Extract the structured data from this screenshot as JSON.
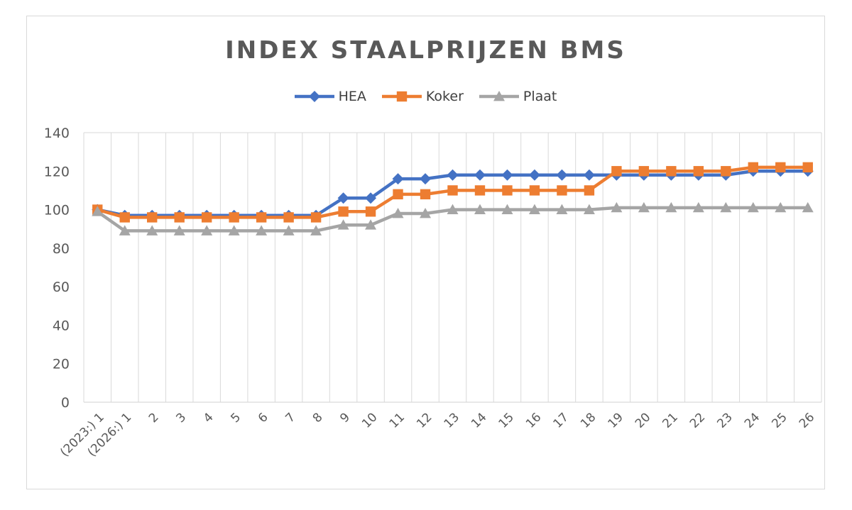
{
  "chart_data": {
    "type": "line",
    "title": "INDEX STAALPRIJZEN BMS",
    "xlabel": "",
    "ylabel": "",
    "ylim": [
      0,
      140
    ],
    "yticks": [
      0,
      20,
      40,
      60,
      80,
      100,
      120,
      140
    ],
    "grid": "vertical",
    "legend_position": "top",
    "categories": [
      "(2023:) 1",
      "(2026:) 1",
      "2",
      "3",
      "4",
      "5",
      "6",
      "7",
      "8",
      "9",
      "10",
      "11",
      "12",
      "13",
      "14",
      "15",
      "16",
      "17",
      "18",
      "19",
      "20",
      "21",
      "22",
      "23",
      "24",
      "25",
      "26"
    ],
    "series": [
      {
        "name": "HEA",
        "color": "#4472c4",
        "marker": "diamond",
        "values": [
          100,
          97,
          97,
          97,
          97,
          97,
          97,
          97,
          97,
          106,
          106,
          116,
          116,
          118,
          118,
          118,
          118,
          118,
          118,
          118,
          118,
          118,
          118,
          118,
          120,
          120,
          120
        ]
      },
      {
        "name": "Koker",
        "color": "#ed7d31",
        "marker": "square",
        "values": [
          100,
          96,
          96,
          96,
          96,
          96,
          96,
          96,
          96,
          99,
          99,
          108,
          108,
          110,
          110,
          110,
          110,
          110,
          110,
          120,
          120,
          120,
          120,
          120,
          122,
          122,
          122
        ]
      },
      {
        "name": "Plaat",
        "color": "#a5a5a5",
        "marker": "triangle",
        "values": [
          99,
          89,
          89,
          89,
          89,
          89,
          89,
          89,
          89,
          92,
          92,
          98,
          98,
          100,
          100,
          100,
          100,
          100,
          100,
          101,
          101,
          101,
          101,
          101,
          101,
          101,
          101
        ]
      }
    ]
  }
}
